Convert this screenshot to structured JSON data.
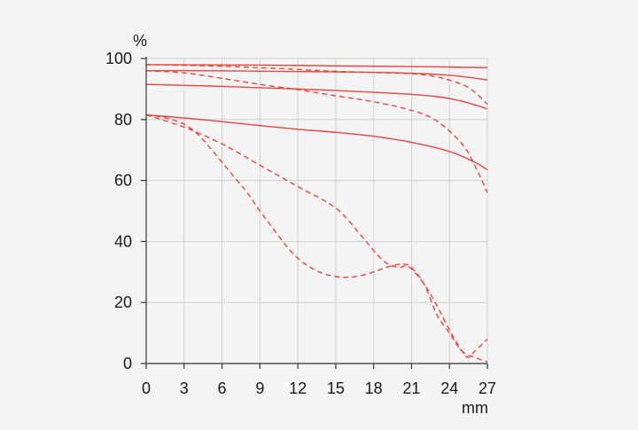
{
  "chart_data": {
    "type": "line",
    "y_unit_label": "%",
    "x_unit_label": "mm",
    "xlim": [
      0,
      27
    ],
    "ylim": [
      0,
      100
    ],
    "x_ticks": [
      0,
      3,
      6,
      9,
      12,
      15,
      18,
      21,
      24,
      27
    ],
    "y_ticks": [
      0,
      20,
      40,
      60,
      80,
      100
    ],
    "grid": true,
    "legend": "none",
    "line_color": "#e8453c",
    "series": [
      {
        "style": "solid",
        "points": [
          [
            0,
            98
          ],
          [
            5,
            97.9
          ],
          [
            10,
            97.8
          ],
          [
            15,
            97.6
          ],
          [
            20,
            97.4
          ],
          [
            24,
            97.2
          ],
          [
            27,
            97
          ]
        ]
      },
      {
        "style": "solid",
        "points": [
          [
            0,
            96
          ],
          [
            5,
            96
          ],
          [
            10,
            95.8
          ],
          [
            15,
            95.6
          ],
          [
            20,
            95.3
          ],
          [
            24,
            94.5
          ],
          [
            27,
            93
          ]
        ]
      },
      {
        "style": "solid",
        "points": [
          [
            0,
            91.5
          ],
          [
            5,
            91
          ],
          [
            10,
            90.3
          ],
          [
            15,
            89.5
          ],
          [
            20,
            88.5
          ],
          [
            23,
            87.5
          ],
          [
            25,
            86
          ],
          [
            27,
            83.5
          ]
        ]
      },
      {
        "style": "solid",
        "points": [
          [
            0,
            81.5
          ],
          [
            3,
            80.5
          ],
          [
            6,
            79.3
          ],
          [
            9,
            78
          ],
          [
            12,
            76.8
          ],
          [
            15,
            75.8
          ],
          [
            18,
            74.5
          ],
          [
            21,
            72.5
          ],
          [
            24,
            69.5
          ],
          [
            26,
            66
          ],
          [
            27,
            63.5
          ]
        ]
      },
      {
        "style": "dashed",
        "points": [
          [
            0,
            98
          ],
          [
            5,
            97.6
          ],
          [
            10,
            96.8
          ],
          [
            15,
            95.8
          ],
          [
            19,
            95.3
          ],
          [
            21,
            95
          ],
          [
            23,
            94
          ],
          [
            25,
            91.5
          ],
          [
            26,
            89
          ],
          [
            27,
            85
          ]
        ]
      },
      {
        "style": "dashed",
        "points": [
          [
            0,
            96
          ],
          [
            3,
            95.3
          ],
          [
            6,
            93.5
          ],
          [
            9,
            91.5
          ],
          [
            12,
            89.8
          ],
          [
            15,
            87.8
          ],
          [
            18,
            85.8
          ],
          [
            21,
            83
          ],
          [
            23,
            79.5
          ],
          [
            25,
            72
          ],
          [
            26,
            65
          ],
          [
            27,
            56
          ]
        ]
      },
      {
        "style": "dashed",
        "points": [
          [
            0,
            81.5
          ],
          [
            3,
            77.5
          ],
          [
            6,
            72
          ],
          [
            9,
            65
          ],
          [
            12,
            58
          ],
          [
            15,
            51
          ],
          [
            17,
            42
          ],
          [
            18,
            37
          ],
          [
            19,
            33
          ],
          [
            20,
            31.5
          ],
          [
            20.5,
            32
          ],
          [
            21,
            31
          ],
          [
            22,
            26
          ],
          [
            23,
            19
          ],
          [
            24,
            11
          ],
          [
            25,
            4
          ],
          [
            25.5,
            2
          ],
          [
            26,
            4
          ],
          [
            27,
            8
          ]
        ]
      },
      {
        "style": "dashed",
        "points": [
          [
            0,
            81.5
          ],
          [
            1,
            81
          ],
          [
            2,
            80
          ],
          [
            3,
            78.5
          ],
          [
            4,
            75.5
          ],
          [
            5,
            71
          ],
          [
            6,
            66
          ],
          [
            7,
            61
          ],
          [
            8,
            56
          ],
          [
            9,
            50
          ],
          [
            10,
            44.5
          ],
          [
            11,
            39
          ],
          [
            12,
            34.5
          ],
          [
            13,
            31.5
          ],
          [
            14,
            29.5
          ],
          [
            15,
            28.5
          ],
          [
            16,
            28.3
          ],
          [
            17,
            28.8
          ],
          [
            18,
            30
          ],
          [
            19,
            31.5
          ],
          [
            20,
            32.5
          ],
          [
            20.5,
            32.5
          ],
          [
            21,
            31.5
          ],
          [
            22,
            26
          ],
          [
            23,
            16
          ],
          [
            24,
            10
          ],
          [
            25,
            4
          ],
          [
            26,
            2
          ],
          [
            27,
            0.5
          ]
        ]
      }
    ]
  }
}
